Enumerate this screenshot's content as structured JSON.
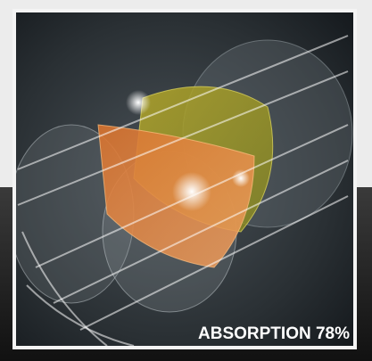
{
  "label": "ABSORPTION 78%"
}
